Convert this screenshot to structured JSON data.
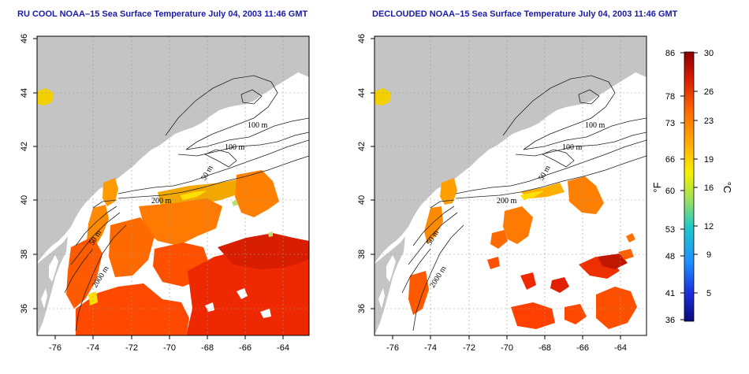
{
  "left_panel": {
    "title": "RU COOL NOAA–15 Sea Surface Temperature July 04, 2003 11:46 GMT",
    "contour_labels": [
      "100 m",
      "100 m",
      "50 m",
      "200 m",
      "50 m",
      "2000 m"
    ]
  },
  "right_panel": {
    "title": "DECLOUDED NOAA–15 Sea Surface Temperature July 04, 2003 11:46 GMT",
    "contour_labels": [
      "100 m",
      "100 m",
      "50 m",
      "200 m",
      "50 m",
      "2000 m"
    ]
  },
  "axes": {
    "lon_ticks": [
      "-76",
      "-74",
      "-72",
      "-70",
      "-68",
      "-66",
      "-64"
    ],
    "lat_ticks": [
      "36",
      "38",
      "40",
      "42",
      "44",
      "46"
    ]
  },
  "colorbar": {
    "fahrenheit_unit": "°F",
    "celsius_unit": "°C",
    "fahrenheit_ticks": [
      "86",
      "78",
      "73",
      "66",
      "60",
      "53",
      "48",
      "41",
      "36"
    ],
    "celsius_ticks": [
      "30",
      "26",
      "23",
      "19",
      "16",
      "12",
      "9",
      "5"
    ],
    "gradient_top_to_bottom": [
      "#8b0000",
      "#d61c00",
      "#ff6a00",
      "#ffb300",
      "#f7f000",
      "#9be060",
      "#20c8c8",
      "#1e90ff",
      "#1a2bd8",
      "#0a0a7a"
    ]
  },
  "colors": {
    "land": "#c4c4c4",
    "ocean_background": "#ffffff",
    "title": "#1a1aa8"
  }
}
